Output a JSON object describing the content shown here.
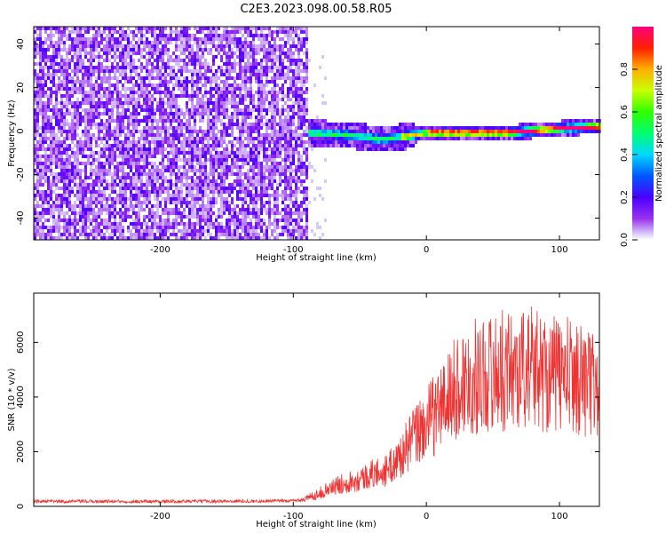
{
  "title": "C2E3.2023.098.00.58.R05",
  "chart_data": [
    {
      "type": "heatmap",
      "xlabel": "Height of straight line (km)",
      "ylabel": "Frequency (Hz)",
      "xlim": [
        -295,
        130
      ],
      "ylim": [
        -50,
        48
      ],
      "xticks": [
        -200,
        -100,
        0,
        100
      ],
      "yticks": [
        -40,
        -20,
        0,
        20,
        40
      ],
      "grid": false,
      "regions": [
        {
          "name": "noise",
          "x_range": [
            -295,
            -90
          ],
          "freq_range": [
            -50,
            48
          ],
          "amplitude": "low"
        },
        {
          "name": "signal",
          "x_range": [
            -90,
            130
          ],
          "center_freq": [
            [
              -90,
              0
            ],
            [
              -60,
              -1
            ],
            [
              -35,
              -3
            ],
            [
              -20,
              -2
            ],
            [
              0,
              0
            ],
            [
              30,
              0
            ],
            [
              60,
              0
            ],
            [
              80,
              1
            ],
            [
              100,
              2
            ],
            [
              130,
              3
            ]
          ],
          "peak_amplitude": 1.0
        }
      ],
      "colorbar": {
        "label": "Normalized spectral amplitude",
        "range": [
          0,
          1
        ],
        "ticks": [
          0.0,
          0.2,
          0.4,
          0.6,
          0.8
        ],
        "tick_labels": [
          "0.0",
          "0.2",
          "0.4",
          "0.6",
          "0.8"
        ]
      }
    },
    {
      "type": "line",
      "xlabel": "Height of straight line (km)",
      "ylabel": "SNR (10 * v/v)",
      "xlim": [
        -295,
        130
      ],
      "ylim": [
        0,
        7800
      ],
      "xticks": [
        -200,
        -100,
        0,
        100
      ],
      "yticks": [
        0,
        2000,
        4000,
        6000
      ],
      "grid": false,
      "series": [
        {
          "color": "#ee3333",
          "x": [
            -295,
            -250,
            -200,
            -150,
            -100,
            -90,
            -80,
            -70,
            -60,
            -50,
            -40,
            -30,
            -20,
            -10,
            0,
            10,
            20,
            30,
            40,
            50,
            60,
            70,
            80,
            90,
            100,
            110,
            120,
            130
          ],
          "y": [
            180,
            180,
            180,
            190,
            200,
            280,
            500,
            700,
            900,
            1000,
            1200,
            1300,
            1800,
            2500,
            3000,
            3600,
            4200,
            4600,
            4800,
            4900,
            5000,
            5000,
            5100,
            4900,
            4800,
            4800,
            4600,
            4300
          ]
        }
      ]
    }
  ]
}
